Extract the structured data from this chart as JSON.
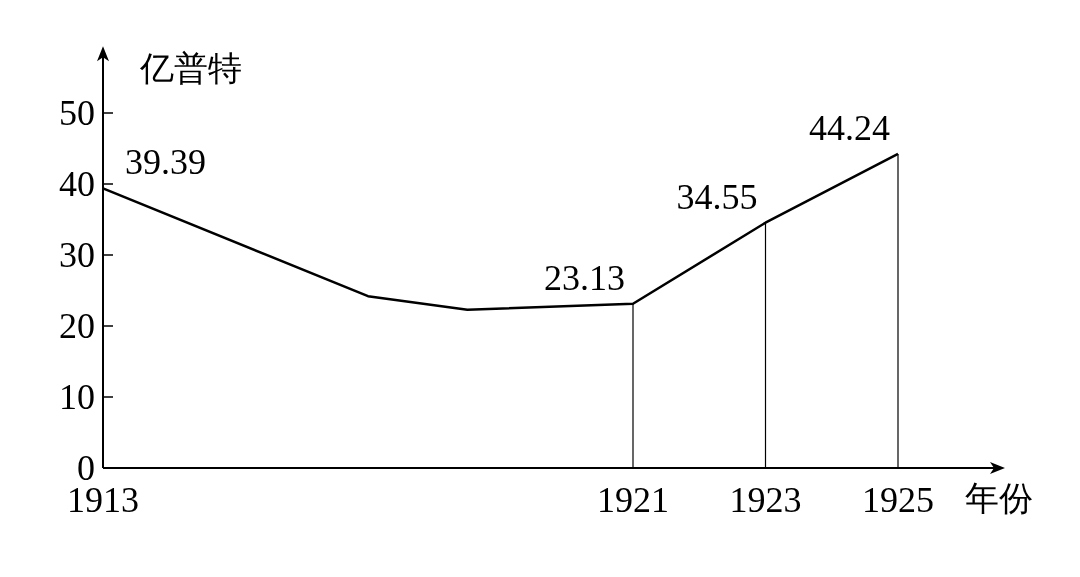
{
  "chart_data": {
    "type": "line",
    "xlabel": "年份",
    "ylabel": "亿普特",
    "x": [
      1913,
      1917,
      1918.5,
      1921,
      1923,
      1925
    ],
    "values": [
      39.39,
      24.2,
      22.3,
      23.13,
      34.55,
      44.24
    ],
    "value_labels": [
      "39.39",
      null,
      null,
      "23.13",
      "34.55",
      "44.24"
    ],
    "color": "#000000",
    "xlim": [
      1913,
      1925
    ],
    "ylim": [
      0,
      58
    ],
    "xticks": [
      1913,
      1921,
      1923,
      1925
    ],
    "yticks": [
      0,
      10,
      20,
      30,
      40,
      50
    ],
    "ref_lines": [
      {
        "axis": "x",
        "value": 1921
      },
      {
        "axis": "x",
        "value": 1923
      },
      {
        "axis": "x",
        "value": 1925
      }
    ]
  }
}
